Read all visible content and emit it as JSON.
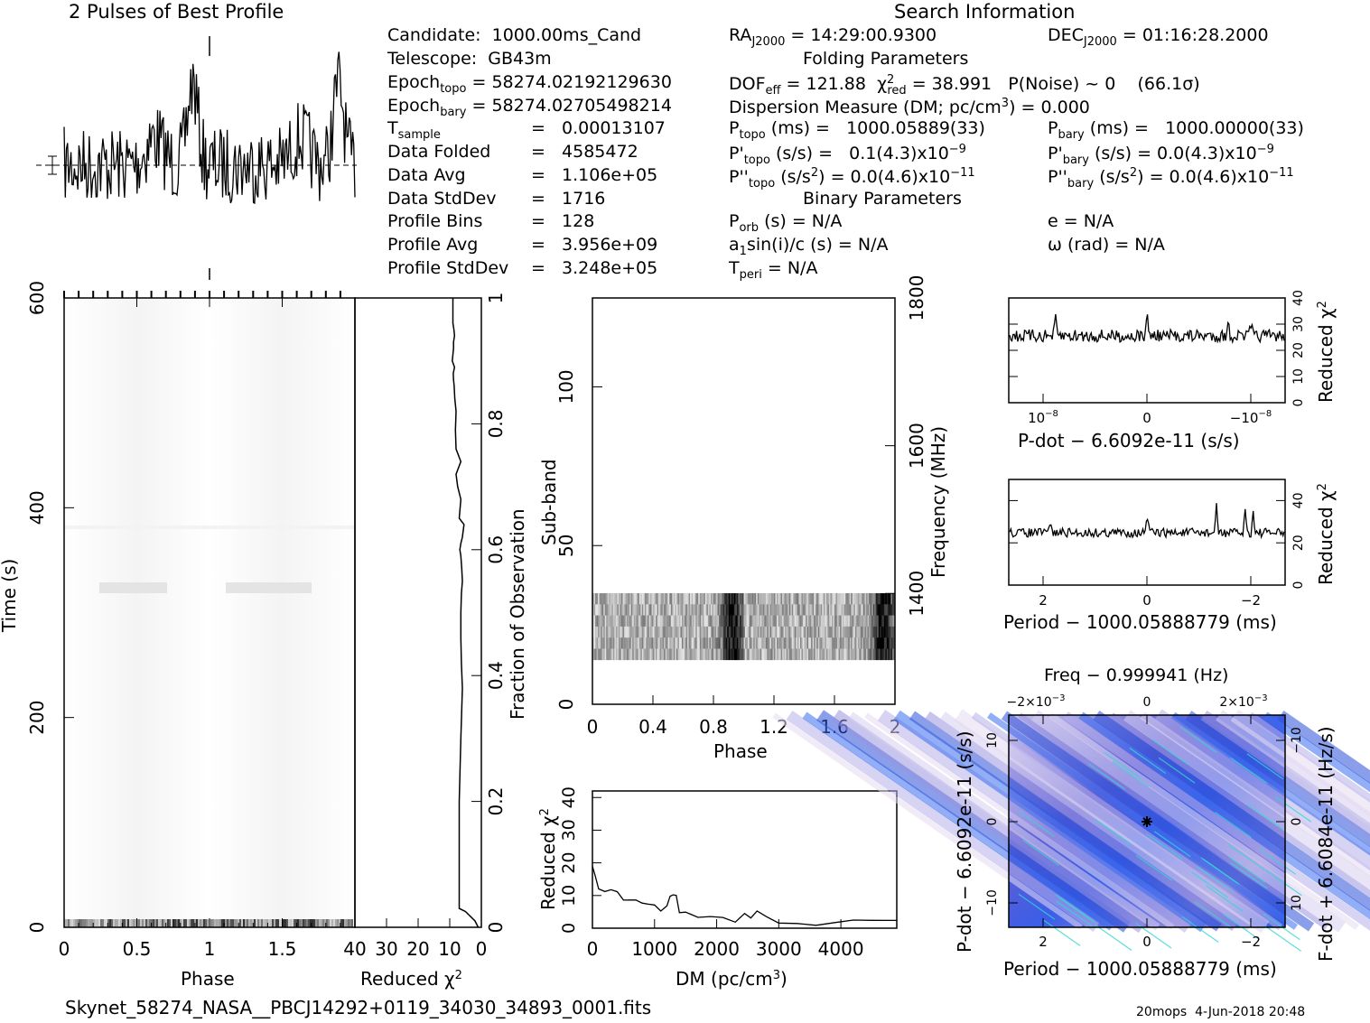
{
  "header": {
    "left_title": "2 Pulses of Best Profile",
    "right_title": "Search Information"
  },
  "info": {
    "candidate": "Candidate:  1000.00ms_Cand",
    "telescope": "Telescope:  GB43m",
    "epoch_topo": "= 58274.02192129630",
    "epoch_bary": "= 58274.02705498214",
    "t_sample": "=   0.00013107",
    "data_folded_label": "Data Folded",
    "data_folded": "=   4585472",
    "data_avg_label": "Data Avg",
    "data_avg": "=   1.106e+05",
    "data_stddev_label": "Data StdDev",
    "data_stddev": "=   1716",
    "profile_bins_label": "Profile Bins",
    "profile_bins": "=   128",
    "profile_avg_label": "Profile Avg",
    "profile_avg": "=   3.956e+09",
    "profile_stddev_label": "Profile StdDev",
    "profile_stddev": "=   3.248e+05",
    "ra": "= 14:29:00.9300",
    "dec": "= 01:16:28.2000",
    "folding_title": "Folding Parameters",
    "dof": "= 121.88",
    "chi2": "= 38.991   P(Noise) ~ 0    (66.1σ)",
    "dm_line": "Dispersion Measure (DM; pc/cm",
    "dm_value": ") = 0.000",
    "p_topo": "(ms) =   1000.05889(33)",
    "p_bary": "(ms) =   1000.00000(33)",
    "pd_topo": "(s/s) =   0.1(4.3)x10",
    "pd_bary": "(s/s) = 0.0(4.3)x10",
    "pdd_topo": "(s/s",
    "pdd_topo_val": ") = 0.0(4.6)x10",
    "pdd_bary": "(s/s",
    "pdd_bary_val": ") = 0.0(4.6)x10",
    "binary_title": "Binary Parameters",
    "p_orb": "(s) = N/A",
    "e": "e = N/A",
    "a1": "sin(i)/c (s) = N/A",
    "omega": "ω (rad) = N/A",
    "t_peri": "= N/A"
  },
  "footer": {
    "filename": "Skynet_58274_NASA__PBCJ14292+0119_34030_34893_0001.fits",
    "stamp": "20mops  4-Jun-2018 20:48"
  },
  "chart_data": [
    {
      "name": "profile",
      "type": "line",
      "title": "2 Pulses of Best Profile",
      "x": "phase 0-2",
      "note": "noisy pulse profile, peak near phase 0.9 and 1.9"
    },
    {
      "name": "time-phase",
      "type": "heatmap",
      "xlabel": "Phase",
      "ylabel": "Time (s)",
      "xticks": [
        "0",
        "0.5",
        "1",
        "1.5"
      ],
      "yticks": [
        "0",
        "200",
        "400",
        "600"
      ],
      "xlim": [
        0,
        2
      ],
      "ylim": [
        0,
        600
      ]
    },
    {
      "name": "time-chi2",
      "type": "line",
      "xlabel": "Reduced χ",
      "ylabel": "Fraction of Observation",
      "xticks": [
        "40",
        "30",
        "20",
        "10",
        "0"
      ],
      "yticks": [
        "0",
        "0.2",
        "0.4",
        "0.6",
        "0.8",
        "1"
      ],
      "xlim": [
        40,
        0
      ],
      "ylim": [
        0,
        1
      ],
      "x": [
        1,
        2,
        3,
        5,
        7,
        7,
        7,
        6.5,
        6,
        6.3,
        6.5,
        6.5,
        6.3,
        6,
        6.2,
        6.5,
        6.8,
        6.5,
        6,
        5.5,
        7,
        6.5,
        7.5,
        8,
        6.5,
        8,
        8.2,
        8,
        8.4,
        8.6,
        8.8,
        8.9,
        8.5,
        9.2,
        8.8,
        8.8,
        8.5,
        8.7,
        9,
        9,
        9,
        9
      ],
      "y": [
        0,
        0.01,
        0.015,
        0.025,
        0.03,
        0.1,
        0.2,
        0.3,
        0.38,
        0.42,
        0.46,
        0.5,
        0.53,
        0.55,
        0.57,
        0.59,
        0.6,
        0.61,
        0.62,
        0.64,
        0.65,
        0.68,
        0.7,
        0.72,
        0.74,
        0.76,
        0.79,
        0.82,
        0.84,
        0.86,
        0.87,
        0.88,
        0.89,
        0.9,
        0.92,
        0.93,
        0.94,
        0.95,
        0.96,
        0.97,
        0.98,
        0.99
      ]
    },
    {
      "name": "subband-phase",
      "type": "heatmap",
      "xlabel": "Phase",
      "ylabel": "Sub-band",
      "y2label": "Frequency (MHz)",
      "xticks": [
        "0",
        "0.4",
        "0.8",
        "1.2",
        "1.6",
        "2"
      ],
      "yticks": [
        "0",
        "50",
        "100"
      ],
      "y2ticks": [
        "1400",
        "1600",
        "1800"
      ],
      "xlim": [
        0,
        2
      ],
      "ylim": [
        0,
        128
      ],
      "band_range": [
        14,
        35
      ]
    },
    {
      "name": "dm-chi2",
      "type": "line",
      "xlabel": "DM (pc/cm",
      "ylabel": "Reduced χ",
      "xticks": [
        "0",
        "1000",
        "2000",
        "3000",
        "4000"
      ],
      "yticks": [
        "0",
        "10",
        "20",
        "30",
        "40"
      ],
      "xlim": [
        0,
        4900
      ],
      "ylim": [
        0,
        42
      ],
      "x": [
        0,
        50,
        100,
        200,
        300,
        400,
        500,
        600,
        700,
        800,
        900,
        1000,
        1100,
        1200,
        1250,
        1300,
        1350,
        1400,
        1500,
        1700,
        1900,
        2100,
        2300,
        2450,
        2550,
        2650,
        2800,
        3000,
        3300,
        3600,
        3900,
        4200,
        4500,
        4900
      ],
      "y": [
        18,
        15,
        13,
        12,
        11,
        10.3,
        9.5,
        9,
        8.3,
        7.5,
        7,
        6.5,
        6,
        7,
        10,
        11,
        9,
        5,
        4.8,
        4.2,
        3.5,
        3,
        2.7,
        4,
        3.5,
        5,
        3,
        2.5,
        1.8,
        1.6,
        1.8,
        1.6,
        2,
        1.8
      ]
    },
    {
      "name": "pdot-chi2",
      "type": "line",
      "xlabel": "P-dot − 6.6092e-11 (s/s)",
      "ylabel": "Reduced χ",
      "xticks": [
        "10",
        "0",
        "−10"
      ],
      "yticks": [
        "0",
        "10",
        "20",
        "30",
        "40"
      ],
      "ylim": [
        0,
        40
      ]
    },
    {
      "name": "period-chi2",
      "type": "line",
      "xlabel": "Period − 1000.05888779 (ms)",
      "ylabel": "Reduced χ",
      "xticks": [
        "2",
        "0",
        "−2"
      ],
      "yticks": [
        "0",
        "20",
        "40"
      ],
      "ylim": [
        0,
        50
      ]
    },
    {
      "name": "period-pdot",
      "type": "heatmap",
      "title": "Freq − 0.999941 (Hz)",
      "xlabel": "Period − 1000.05888779 (ms)",
      "ylabel": "P-dot − 6.6092e-11 (s/s)",
      "y2label": "F-dot + 6.6084e-11 (Hz/s)",
      "xticks": [
        "2",
        "0",
        "−2"
      ],
      "x2ticks": [
        "−2×10",
        "0",
        "2×10"
      ],
      "yticks": [
        "10",
        "0",
        "−10"
      ],
      "y2ticks": [
        "−10",
        "0",
        "10"
      ]
    }
  ]
}
